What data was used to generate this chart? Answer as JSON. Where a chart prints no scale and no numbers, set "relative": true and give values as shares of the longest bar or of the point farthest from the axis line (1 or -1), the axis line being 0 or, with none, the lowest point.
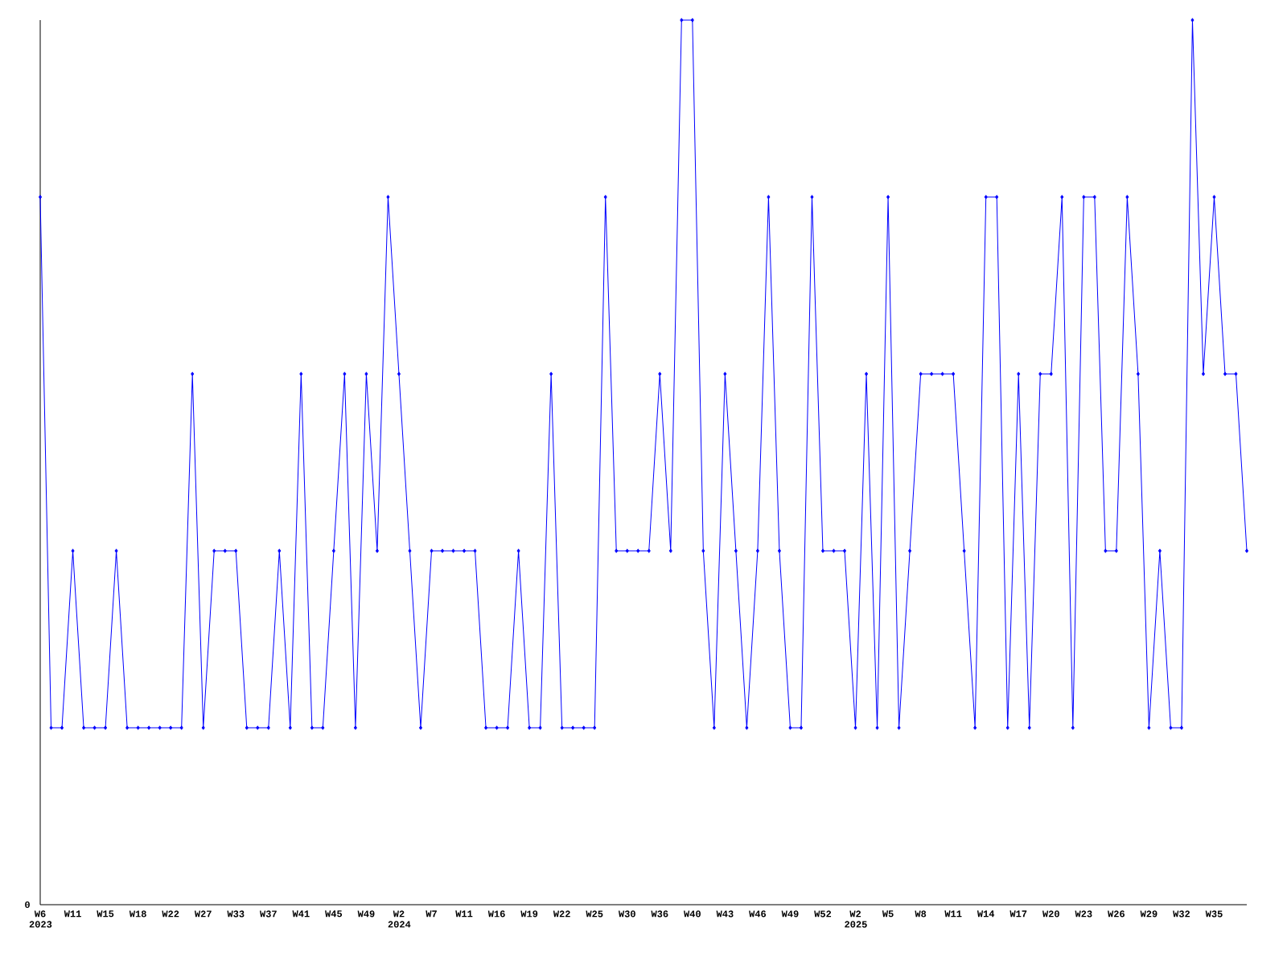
{
  "chart_data": {
    "type": "line",
    "relative": true,
    "color": "#0000ff",
    "marker": "diamond",
    "line_style": "solid",
    "annotations": [
      "0"
    ],
    "categories": [
      "W6 2023",
      null,
      null,
      "W11",
      null,
      null,
      "W15",
      null,
      null,
      "W18",
      null,
      null,
      "W22",
      null,
      null,
      "W27",
      null,
      null,
      "W33",
      null,
      null,
      "W37",
      null,
      null,
      "W41",
      null,
      null,
      "W45",
      null,
      null,
      "W49",
      null,
      null,
      "W2 2024",
      null,
      null,
      "W7",
      null,
      null,
      "W11",
      null,
      null,
      "W16",
      null,
      null,
      "W19",
      null,
      null,
      "W22",
      null,
      null,
      "W25",
      null,
      null,
      "W30",
      null,
      null,
      "W36",
      null,
      null,
      "W40",
      null,
      null,
      "W43",
      null,
      null,
      "W46",
      null,
      null,
      "W49",
      null,
      null,
      "W52",
      null,
      null,
      "W2 2025",
      null,
      null,
      "W5",
      null,
      null,
      "W8",
      null,
      null,
      "W11",
      null,
      null,
      "W14",
      null,
      null,
      "W17",
      null,
      null,
      "W20",
      null,
      null,
      "W23",
      null,
      null,
      "W26",
      null,
      null,
      "W29",
      null,
      null,
      "W32",
      null,
      null,
      "W35",
      null,
      null,
      null
    ],
    "values": [
      0.8,
      0.2,
      0.2,
      0.4,
      0.2,
      0.2,
      0.2,
      0.4,
      0.2,
      0.2,
      0.2,
      0.2,
      0.2,
      0.2,
      0.6,
      0.2,
      0.4,
      0.4,
      0.4,
      0.2,
      0.2,
      0.2,
      0.4,
      0.2,
      0.6,
      0.2,
      0.2,
      0.4,
      0.6,
      0.2,
      0.6,
      0.4,
      0.8,
      0.6,
      0.4,
      0.2,
      0.4,
      0.4,
      0.4,
      0.4,
      0.4,
      0.2,
      0.2,
      0.2,
      0.4,
      0.2,
      0.2,
      0.6,
      0.2,
      0.2,
      0.2,
      0.2,
      0.8,
      0.4,
      0.4,
      0.4,
      0.4,
      0.6,
      0.4,
      1.0,
      1.0,
      0.4,
      0.2,
      0.6,
      0.4,
      0.2,
      0.4,
      0.8,
      0.4,
      0.2,
      0.2,
      0.8,
      0.4,
      0.4,
      0.4,
      0.2,
      0.6,
      0.2,
      0.8,
      0.2,
      0.4,
      0.6,
      0.6,
      0.6,
      0.6,
      0.4,
      0.2,
      0.8,
      0.8,
      0.2,
      0.6,
      0.2,
      0.6,
      0.6,
      0.8,
      0.2,
      0.8,
      0.8,
      0.4,
      0.4,
      0.8,
      0.6,
      0.2,
      0.4,
      0.2,
      0.2,
      1.0,
      0.6,
      0.8,
      0.6,
      0.6,
      0.4
    ]
  }
}
